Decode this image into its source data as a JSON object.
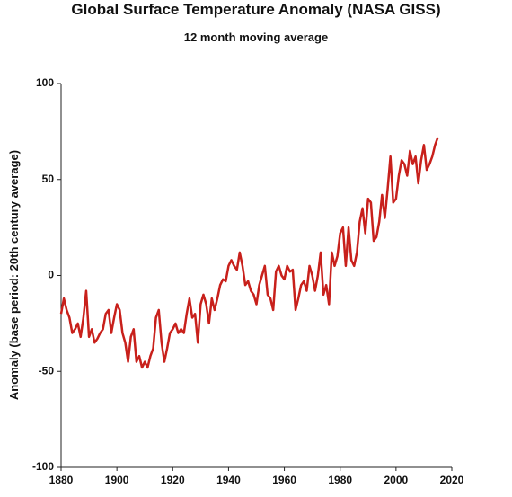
{
  "chart_data": {
    "type": "line",
    "title": "Global Surface Temperature Anomaly (NASA GISS)",
    "subtitle": "12 month moving average",
    "y_label": "Anomaly (base period: 20th century average)",
    "x": [
      1880,
      1881,
      1882,
      1883,
      1884,
      1885,
      1886,
      1887,
      1888,
      1889,
      1890,
      1891,
      1892,
      1893,
      1894,
      1895,
      1896,
      1897,
      1898,
      1899,
      1900,
      1901,
      1902,
      1903,
      1904,
      1905,
      1906,
      1907,
      1908,
      1909,
      1910,
      1911,
      1912,
      1913,
      1914,
      1915,
      1916,
      1917,
      1918,
      1919,
      1920,
      1921,
      1922,
      1923,
      1924,
      1925,
      1926,
      1927,
      1928,
      1929,
      1930,
      1931,
      1932,
      1933,
      1934,
      1935,
      1936,
      1937,
      1938,
      1939,
      1940,
      1941,
      1942,
      1943,
      1944,
      1945,
      1946,
      1947,
      1948,
      1949,
      1950,
      1951,
      1952,
      1953,
      1954,
      1955,
      1956,
      1957,
      1958,
      1959,
      1960,
      1961,
      1962,
      1963,
      1964,
      1965,
      1966,
      1967,
      1968,
      1969,
      1970,
      1971,
      1972,
      1973,
      1974,
      1975,
      1976,
      1977,
      1978,
      1979,
      1980,
      1981,
      1982,
      1983,
      1984,
      1985,
      1986,
      1987,
      1988,
      1989,
      1990,
      1991,
      1992,
      1993,
      1994,
      1995,
      1996,
      1997,
      1998,
      1999,
      2000,
      2001,
      2002,
      2003,
      2004,
      2005,
      2006,
      2007,
      2008,
      2009,
      2010,
      2011,
      2012,
      2013,
      2014,
      2015
    ],
    "series": [
      {
        "color": "#c8201b",
        "values": [
          -20,
          -12,
          -18,
          -22,
          -30,
          -28,
          -25,
          -32,
          -22,
          -8,
          -32,
          -28,
          -35,
          -33,
          -30,
          -28,
          -20,
          -18,
          -30,
          -22,
          -15,
          -18,
          -30,
          -35,
          -45,
          -32,
          -28,
          -45,
          -42,
          -48,
          -45,
          -48,
          -42,
          -38,
          -22,
          -18,
          -35,
          -45,
          -38,
          -30,
          -28,
          -25,
          -30,
          -28,
          -30,
          -20,
          -12,
          -22,
          -20,
          -35,
          -15,
          -10,
          -15,
          -25,
          -12,
          -18,
          -12,
          -5,
          -2,
          -3,
          5,
          8,
          5,
          3,
          12,
          5,
          -5,
          -3,
          -8,
          -10,
          -15,
          -5,
          0,
          5,
          -10,
          -12,
          -18,
          2,
          5,
          0,
          -2,
          5,
          2,
          3,
          -18,
          -12,
          -5,
          -3,
          -8,
          5,
          0,
          -8,
          0,
          12,
          -10,
          -5,
          -15,
          12,
          5,
          10,
          22,
          25,
          5,
          25,
          8,
          5,
          12,
          28,
          35,
          22,
          40,
          38,
          18,
          20,
          28,
          42,
          30,
          45,
          62,
          38,
          40,
          52,
          60,
          58,
          52,
          65,
          58,
          62,
          48,
          60,
          68,
          55,
          58,
          62,
          68,
          72
        ]
      }
    ],
    "xlim": [
      1880,
      2020
    ],
    "xticks": [
      1880,
      1900,
      1920,
      1940,
      1960,
      1980,
      2000,
      2020
    ],
    "ylim": [
      -100,
      100
    ],
    "yticks": [
      -100,
      -50,
      0,
      50,
      100
    ]
  }
}
